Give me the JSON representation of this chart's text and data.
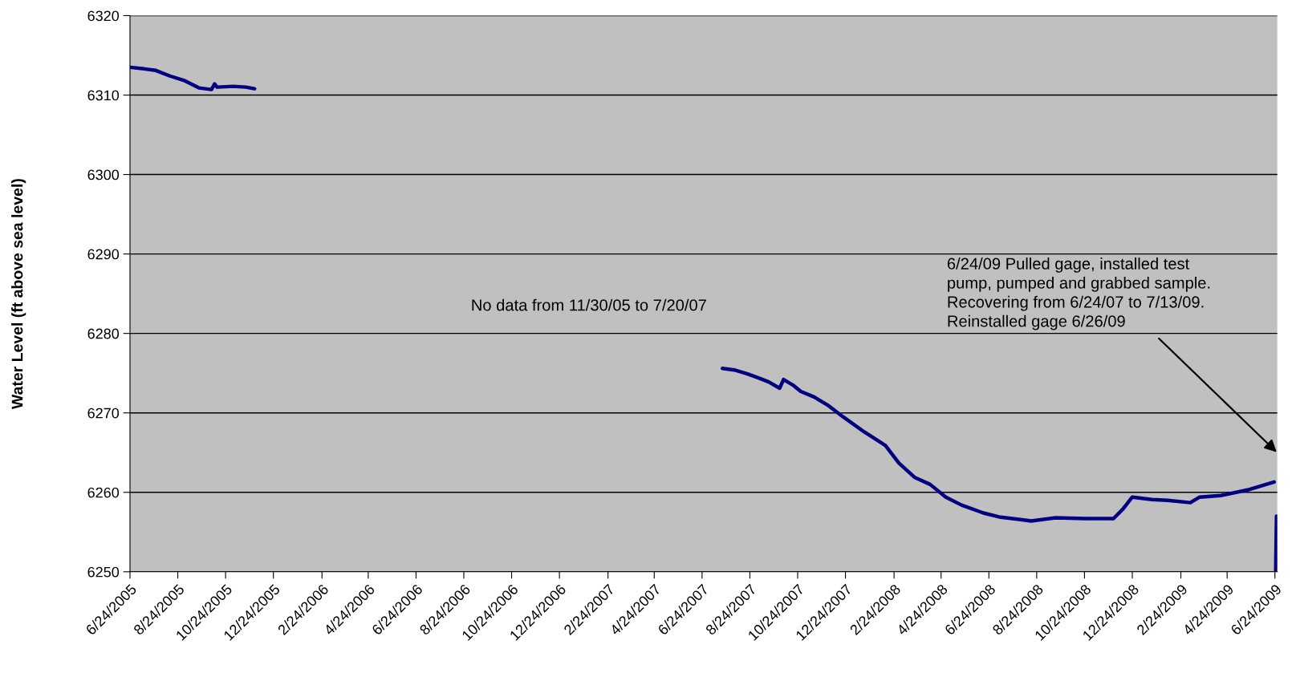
{
  "chart_data": {
    "type": "line",
    "ylabel": "Water Level (ft above sea level)",
    "x": [
      "2005-06-24",
      "2005-07-12",
      "2005-07-27",
      "2005-08-14",
      "2005-09-02",
      "2005-09-20",
      "2005-10-06",
      "2005-10-10",
      "2005-10-13",
      "2005-11-03",
      "2005-11-19",
      "2005-11-30",
      "2006-06-01",
      "2007-07-20",
      "2007-08-04",
      "2007-08-21",
      "2007-09-04",
      "2007-09-17",
      "2007-10-01",
      "2007-10-06",
      "2007-10-18",
      "2007-10-28",
      "2007-11-14",
      "2007-12-01",
      "2007-12-21",
      "2008-01-17",
      "2008-02-13",
      "2008-03-01",
      "2008-03-21",
      "2008-04-10",
      "2008-04-30",
      "2008-05-20",
      "2008-06-17",
      "2008-07-07",
      "2008-08-17",
      "2008-09-17",
      "2008-10-26",
      "2008-11-30",
      "2008-12-12",
      "2008-12-24",
      "2009-01-18",
      "2009-02-07",
      "2009-03-08",
      "2009-03-20",
      "2009-04-16",
      "2009-05-20",
      "2009-06-23",
      "2009-06-24",
      "2009-06-25",
      "2009-06-26"
    ],
    "series": [
      {
        "color": "#000080",
        "values": [
          6313.5,
          6313.3,
          6313.1,
          6312.4,
          6311.8,
          6310.9,
          6310.7,
          6311.4,
          6311.0,
          6311.1,
          6311.0,
          6310.8,
          null,
          6275.6,
          6275.4,
          6274.9,
          6274.4,
          6273.9,
          6273.1,
          6274.2,
          6273.5,
          6272.7,
          6272.0,
          6271.0,
          6269.5,
          6267.6,
          6265.9,
          6263.7,
          6261.9,
          6261.0,
          6259.4,
          6258.4,
          6257.4,
          6256.9,
          6256.4,
          6256.8,
          6256.7,
          6256.7,
          6257.9,
          6259.4,
          6259.1,
          6259.0,
          6258.7,
          6259.4,
          6259.6,
          6260.3,
          6261.3,
          null,
          6250,
          6257.0
        ]
      }
    ],
    "xlim": [
      "2005-06-24",
      "2009-06-27"
    ],
    "xticks": [
      {
        "value": "2005-06-24",
        "label": "6/24/2005"
      },
      {
        "value": "2005-08-24",
        "label": "8/24/2005"
      },
      {
        "value": "2005-10-24",
        "label": "10/24/2005"
      },
      {
        "value": "2005-12-24",
        "label": "12/24/2005"
      },
      {
        "value": "2006-02-24",
        "label": "2/24/2006"
      },
      {
        "value": "2006-04-24",
        "label": "4/24/2006"
      },
      {
        "value": "2006-06-24",
        "label": "6/24/2006"
      },
      {
        "value": "2006-08-24",
        "label": "8/24/2006"
      },
      {
        "value": "2006-10-24",
        "label": "10/24/2006"
      },
      {
        "value": "2006-12-24",
        "label": "12/24/2006"
      },
      {
        "value": "2007-02-24",
        "label": "2/24/2007"
      },
      {
        "value": "2007-04-24",
        "label": "4/24/2007"
      },
      {
        "value": "2007-06-24",
        "label": "6/24/2007"
      },
      {
        "value": "2007-08-24",
        "label": "8/24/2007"
      },
      {
        "value": "2007-10-24",
        "label": "10/24/2007"
      },
      {
        "value": "2007-12-24",
        "label": "12/24/2007"
      },
      {
        "value": "2008-02-24",
        "label": "2/24/2008"
      },
      {
        "value": "2008-04-24",
        "label": "4/24/2008"
      },
      {
        "value": "2008-06-24",
        "label": "6/24/2008"
      },
      {
        "value": "2008-08-24",
        "label": "8/24/2008"
      },
      {
        "value": "2008-10-24",
        "label": "10/24/2008"
      },
      {
        "value": "2008-12-24",
        "label": "12/24/2008"
      },
      {
        "value": "2009-02-24",
        "label": "2/24/2009"
      },
      {
        "value": "2009-04-24",
        "label": "4/24/2009"
      },
      {
        "value": "2009-06-24",
        "label": "6/24/2009"
      }
    ],
    "ylim": [
      6250,
      6320
    ],
    "yticks": [
      6250,
      6260,
      6270,
      6280,
      6290,
      6300,
      6310,
      6320
    ],
    "grid": "y",
    "marker": "none",
    "line_style": "solid",
    "annotations": [
      "No data from 11/30/05 to 7/20/07",
      "6/24/09 Pulled gage, installed test\npump, pumped and grabbed sample.\nRecovering from 6/24/07 to 7/13/09.\nReinstalled gage 6/26/09"
    ]
  }
}
